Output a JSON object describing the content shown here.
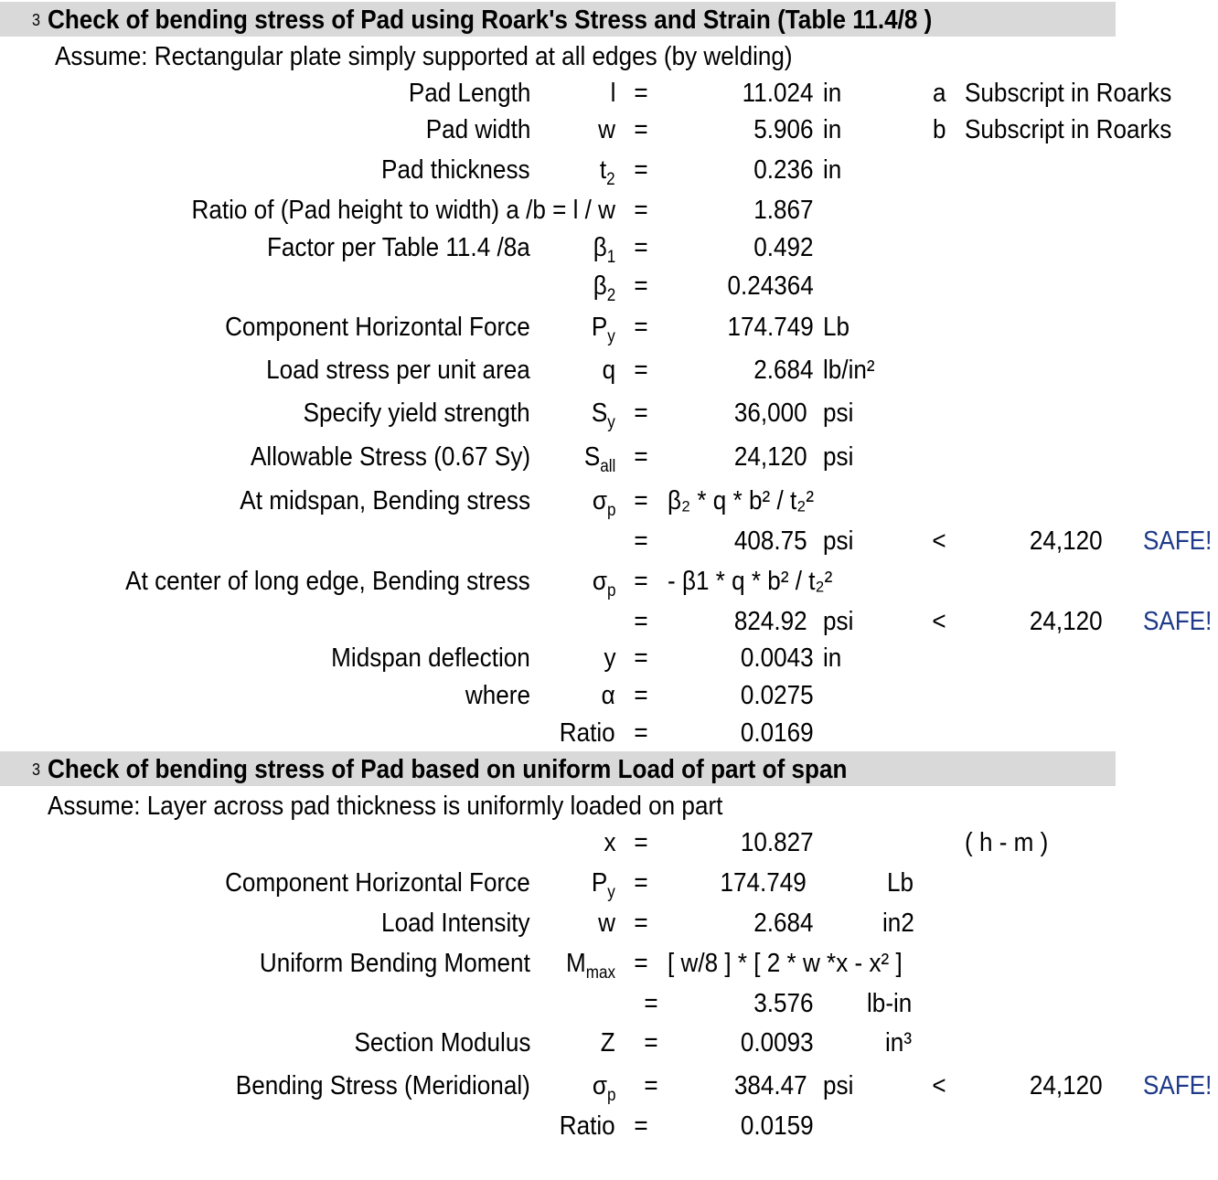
{
  "section1": {
    "number": "3",
    "title": "Check of bending stress of Pad using Roark's Stress and Strain (Table  11.4/8 )",
    "assume": "Assume: Rectangular plate simply supported at all edges (by welding)",
    "rows": [
      {
        "label": "Pad Length",
        "sym": "l",
        "eq": "=",
        "value": "11.024",
        "unit": "in",
        "note_key": "a",
        "note": "Subscript in Roarks"
      },
      {
        "label": "Pad width",
        "sym": "w",
        "eq": "=",
        "value": "5.906",
        "unit": "in",
        "note_key": "b",
        "note": "Subscript in Roarks"
      },
      {
        "label": "Pad thickness",
        "sym": "t",
        "sym_sub": "2",
        "eq": "=",
        "value": "0.236",
        "unit": "in"
      },
      {
        "label": "Ratio of (Pad height to width) a /b = l / w",
        "eq": "=",
        "value": "1.867"
      },
      {
        "label": "Factor per Table 11.4 /8a",
        "sym": "β",
        "sym_sub": "1",
        "eq": "=",
        "value": "0.492"
      },
      {
        "sym": "β",
        "sym_sub": "2",
        "eq": "=",
        "value": "0.24364"
      },
      {
        "label": "Component Horizontal Force",
        "sym": "P",
        "sym_sub": "y",
        "eq": "=",
        "value": "174.749",
        "unit": "Lb"
      },
      {
        "label": "Load stress per unit area",
        "sym": "q",
        "eq": "=",
        "value": "2.684",
        "unit": "lb/in²"
      },
      {
        "label": "Specify yield strength",
        "sym": "S",
        "sym_sub": "y",
        "eq": "=",
        "value": "36,000",
        "unit": "psi"
      },
      {
        "label": "Allowable Stress (0.67 Sy)",
        "sym": "S",
        "sym_sub": "all",
        "eq": "=",
        "value": "24,120",
        "unit": "psi"
      },
      {
        "label": "At midspan, Bending stress",
        "sym": "σ",
        "sym_sub": "p",
        "eq": "=",
        "formula": "β₂ * q * b² / t₂²"
      },
      {
        "eq": "=",
        "value": "408.75",
        "unit": "psi",
        "cmp": "<",
        "limit": "24,120",
        "status": "SAFE!"
      },
      {
        "label": "At center of long edge, Bending stress",
        "sym": "σ",
        "sym_sub": "p",
        "eq": "=",
        "formula": "- β1 * q * b² / t₂²"
      },
      {
        "eq": "=",
        "value": "824.92",
        "unit": "psi",
        "cmp": "<",
        "limit": "24,120",
        "status": "SAFE!"
      },
      {
        "label": "Midspan deflection",
        "sym": "y",
        "eq": "=",
        "value": "0.0043",
        "unit": "in"
      },
      {
        "label": "where",
        "sym": "α",
        "eq": "=",
        "value": "0.0275"
      },
      {
        "sym": "Ratio",
        "eq": "=",
        "value": "0.0169"
      }
    ]
  },
  "section2": {
    "number": "3",
    "title": "Check of bending stress of Pad  based on uniform Load of part of span",
    "assume": "Assume: Layer across pad thickness is uniformly loaded on part",
    "rows": [
      {
        "sym": "x",
        "eq": "=",
        "value": "10.827",
        "note": "( h - m )"
      },
      {
        "label": "Component Horizontal Force",
        "sym": "P",
        "sym_sub": "y",
        "eq": "=",
        "value": "174.749",
        "unit": "Lb"
      },
      {
        "label": "Load Intensity",
        "sym": "w",
        "eq": "=",
        "value": "2.684",
        "unit": "in2"
      },
      {
        "label": "Uniform Bending Moment",
        "sym": "M",
        "sym_sub": "max",
        "eq": "=",
        "formula": "[ w/8  ] * [ 2 * w *x  - x² ]"
      },
      {
        "eq": "=",
        "value": "3.576",
        "unit": "lb-in"
      },
      {
        "label": "Section Modulus",
        "sym": "Z",
        "eq": "=",
        "value": "0.0093",
        "unit": "in³"
      },
      {
        "label": "Bending Stress (Meridional)",
        "sym": "σ",
        "sym_sub": "p",
        "eq": "=",
        "value": "384.47",
        "unit": "psi",
        "cmp": "<",
        "limit": "24,120",
        "status": "SAFE!"
      },
      {
        "sym": "Ratio",
        "eq": "=",
        "value": "0.0159"
      }
    ]
  },
  "colors": {
    "header_bg": "#d9d9d9",
    "safe": "#1f3a8a"
  }
}
